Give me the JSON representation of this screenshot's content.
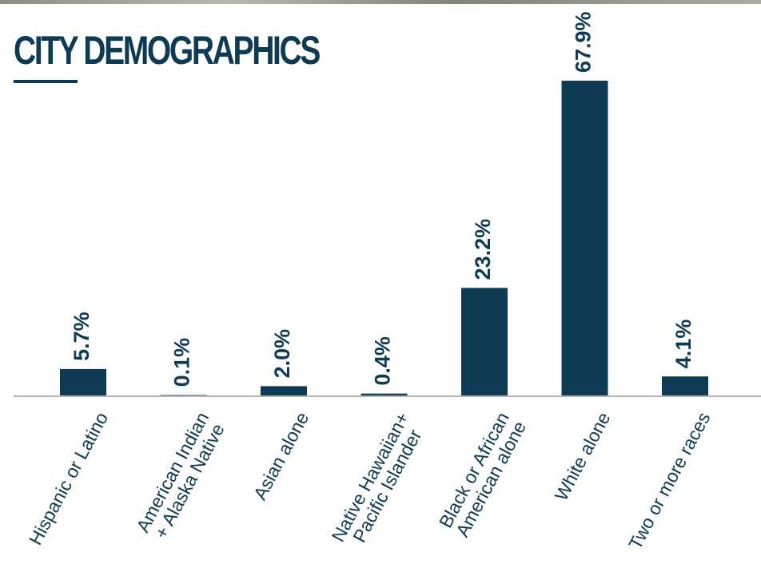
{
  "chart_data": {
    "type": "bar",
    "title": "CITY DEMOGRAPHICS",
    "categories": [
      "Hispanic or Latino",
      "American Indian\n+ Alaska Native",
      "Asian alone",
      "Native Hawaiian+\nPacific Islander",
      "Black or African\nAmerican alone",
      "White alone",
      "Two or more races"
    ],
    "values": [
      5.7,
      0.1,
      2.0,
      0.4,
      23.2,
      67.9,
      4.1
    ],
    "value_labels": [
      "5.7%",
      "0.1%",
      "2.0%",
      "0.4%",
      "23.2%",
      "67.9%",
      "4.1%"
    ],
    "color": "#0d3b53"
  }
}
